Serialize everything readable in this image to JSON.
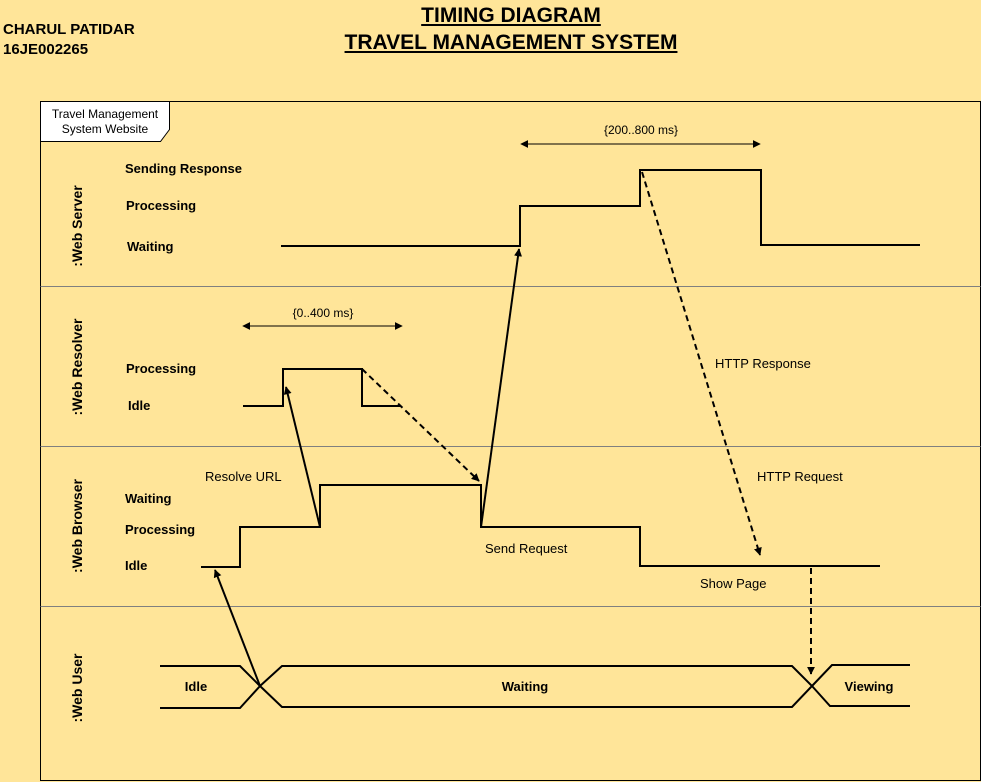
{
  "author": {
    "name": "CHARUL PATIDAR",
    "id": "16JE002265"
  },
  "title": {
    "line1": "TIMING DIAGRAM",
    "line2": "TRAVEL MANAGEMENT SYSTEM"
  },
  "frame_label": {
    "line1": "Travel Management",
    "line2": "System Website"
  },
  "lifelines": {
    "web_server": ":Web Server",
    "web_resolver": ":Web Resolver",
    "web_browser": ":Web Browser",
    "web_user": ":Web User"
  },
  "states": {
    "server_sending_response": "Sending Response",
    "server_processing": "Processing",
    "server_waiting": "Waiting",
    "resolver_processing": "Processing",
    "resolver_idle": "Idle",
    "browser_waiting": "Waiting",
    "browser_processing": "Processing",
    "browser_idle": "Idle",
    "user_idle": "Idle",
    "user_waiting": "Waiting",
    "user_viewing": "Viewing"
  },
  "constraints": {
    "server": "{200..800 ms}",
    "resolver": "{0..400 ms}"
  },
  "messages": {
    "resolve_url": "Resolve URL",
    "send_request": "Send Request",
    "http_request": "HTTP Request",
    "http_response": "HTTP Response",
    "show_page": "Show Page"
  },
  "colors": {
    "background": "#ffe599",
    "line": "#000000",
    "divider": "#808080",
    "label_box": "#ffffff"
  }
}
